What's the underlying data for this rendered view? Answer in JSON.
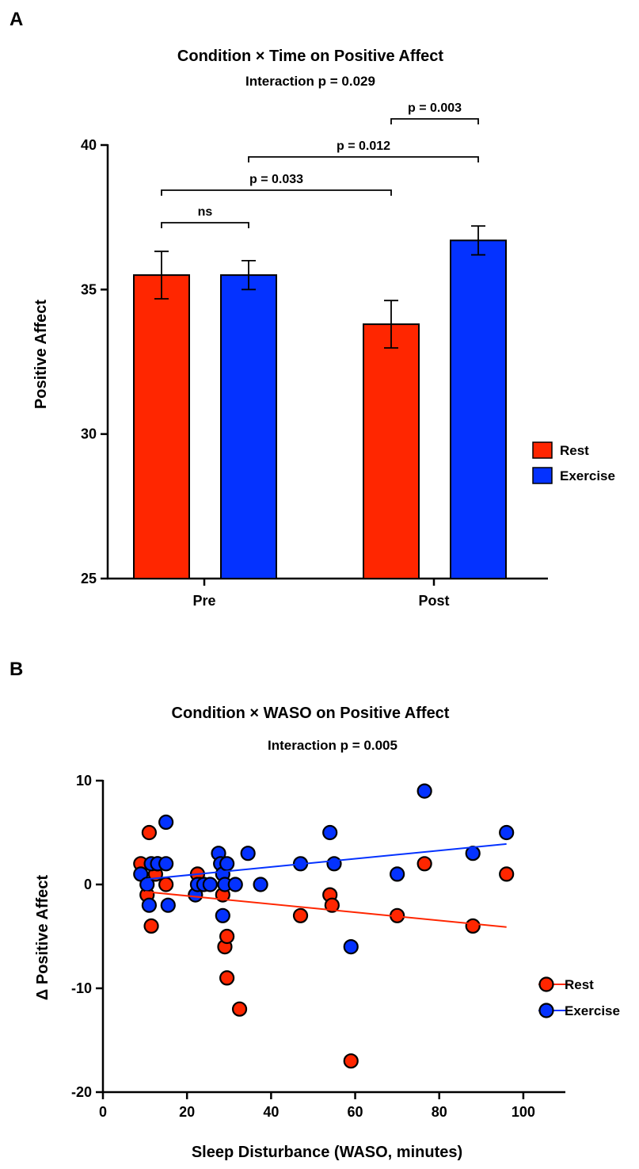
{
  "chart_data": [
    {
      "panel": "A",
      "type": "bar",
      "title": "Condition × Time on Positive Affect",
      "subtitle": "Interaction p = 0.029",
      "xlabel": "",
      "ylabel": "Positive Affect",
      "ylim": [
        25,
        40
      ],
      "yticks": [
        "25",
        "30",
        "35",
        "40"
      ],
      "categories": [
        "Pre",
        "Post"
      ],
      "series": [
        {
          "name": "Rest",
          "color": "#ff2600",
          "values": [
            35.5,
            33.8
          ],
          "errors": [
            0.82,
            0.82
          ]
        },
        {
          "name": "Exercise",
          "color": "#0432ff",
          "values": [
            35.5,
            36.7
          ],
          "errors": [
            0.5,
            0.5
          ]
        }
      ],
      "significance": [
        {
          "label": "ns",
          "from": [
            0,
            0
          ],
          "to": [
            0,
            1
          ]
        },
        {
          "label": "p = 0.033",
          "from": [
            0,
            0
          ],
          "to": [
            1,
            0
          ]
        },
        {
          "label": "p = 0.012",
          "from": [
            0,
            1
          ],
          "to": [
            1,
            1
          ]
        },
        {
          "label": "p = 0.003",
          "from": [
            1,
            0
          ],
          "to": [
            1,
            1
          ]
        }
      ],
      "legend": "right"
    },
    {
      "panel": "B",
      "type": "scatter",
      "title": "Condition × WASO on Positive Affect",
      "subtitle": "Interaction p = 0.005",
      "xlabel": "Sleep Disturbance (WASO, minutes)",
      "ylabel": "Δ Positive Affect",
      "xlim": [
        0,
        110
      ],
      "ylim": [
        -20,
        10
      ],
      "xticks": [
        "0",
        "20",
        "40",
        "60",
        "80",
        "100"
      ],
      "yticks": [
        "-20",
        "-10",
        "0",
        "10"
      ],
      "series": [
        {
          "name": "Rest",
          "color": "#ff2600",
          "points": [
            [
              9,
              2
            ],
            [
              10.5,
              -1
            ],
            [
              11,
              5
            ],
            [
              11.5,
              -4
            ],
            [
              12.5,
              1
            ],
            [
              13,
              2
            ],
            [
              15,
              0
            ],
            [
              22.5,
              1
            ],
            [
              23,
              0
            ],
            [
              28.5,
              -1
            ],
            [
              29,
              -6
            ],
            [
              29.5,
              -5
            ],
            [
              29.5,
              -9
            ],
            [
              32.5,
              -12
            ],
            [
              47,
              -3
            ],
            [
              54,
              -1
            ],
            [
              54.5,
              -2
            ],
            [
              59,
              -17
            ],
            [
              70,
              -3
            ],
            [
              76.5,
              2
            ],
            [
              88,
              -4
            ],
            [
              96,
              1
            ]
          ],
          "trend": [
            [
              10,
              -0.7
            ],
            [
              96,
              -4.1
            ]
          ]
        },
        {
          "name": "Exercise",
          "color": "#0432ff",
          "points": [
            [
              9,
              1
            ],
            [
              10.5,
              0
            ],
            [
              11,
              -2
            ],
            [
              11.5,
              2
            ],
            [
              13,
              2
            ],
            [
              15,
              6
            ],
            [
              15,
              2
            ],
            [
              15.5,
              -2
            ],
            [
              22,
              -1
            ],
            [
              22.5,
              0
            ],
            [
              24,
              0
            ],
            [
              25.5,
              0
            ],
            [
              27.5,
              3
            ],
            [
              28,
              2
            ],
            [
              28.5,
              1
            ],
            [
              28.5,
              -3
            ],
            [
              29,
              0
            ],
            [
              29.5,
              2
            ],
            [
              31.5,
              0
            ],
            [
              34.5,
              3
            ],
            [
              37.5,
              0
            ],
            [
              47,
              2
            ],
            [
              54,
              5
            ],
            [
              55,
              2
            ],
            [
              59,
              -6
            ],
            [
              70,
              1
            ],
            [
              76.5,
              9
            ],
            [
              88,
              3
            ],
            [
              96,
              5
            ]
          ],
          "trend": [
            [
              10,
              0.5
            ],
            [
              96,
              3.9
            ]
          ]
        }
      ],
      "legend": "right"
    }
  ]
}
